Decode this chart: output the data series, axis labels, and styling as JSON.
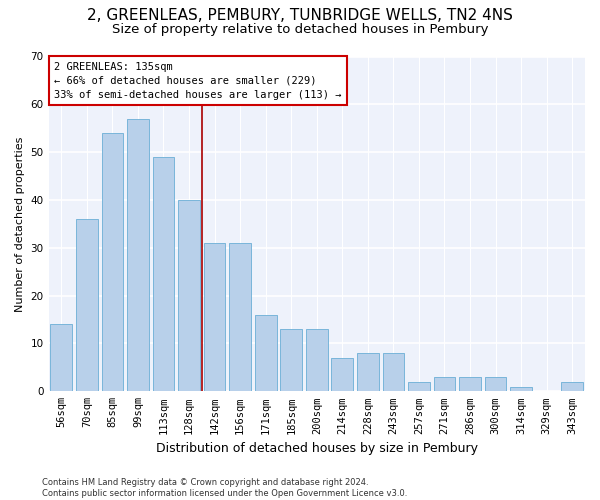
{
  "title1": "2, GREENLEAS, PEMBURY, TUNBRIDGE WELLS, TN2 4NS",
  "title2": "Size of property relative to detached houses in Pembury",
  "xlabel": "Distribution of detached houses by size in Pembury",
  "ylabel": "Number of detached properties",
  "categories": [
    "56sqm",
    "70sqm",
    "85sqm",
    "99sqm",
    "113sqm",
    "128sqm",
    "142sqm",
    "156sqm",
    "171sqm",
    "185sqm",
    "200sqm",
    "214sqm",
    "228sqm",
    "243sqm",
    "257sqm",
    "271sqm",
    "286sqm",
    "300sqm",
    "314sqm",
    "329sqm",
    "343sqm"
  ],
  "values": [
    14,
    36,
    54,
    57,
    49,
    40,
    31,
    31,
    16,
    13,
    13,
    7,
    8,
    8,
    2,
    3,
    3,
    3,
    1,
    0,
    2
  ],
  "bar_color": "#b8d0ea",
  "bar_edge_color": "#6aaed6",
  "background_color": "#eef2fb",
  "grid_color": "#ffffff",
  "annotation_text": "2 GREENLEAS: 135sqm\n← 66% of detached houses are smaller (229)\n33% of semi-detached houses are larger (113) →",
  "vline_x": 6.0,
  "vline_color": "#aa0000",
  "ylim": [
    0,
    70
  ],
  "yticks": [
    0,
    10,
    20,
    30,
    40,
    50,
    60,
    70
  ],
  "footer": "Contains HM Land Registry data © Crown copyright and database right 2024.\nContains public sector information licensed under the Open Government Licence v3.0.",
  "title1_fontsize": 11,
  "title2_fontsize": 9.5,
  "xlabel_fontsize": 9,
  "ylabel_fontsize": 8,
  "tick_fontsize": 7.5,
  "footer_fontsize": 6
}
